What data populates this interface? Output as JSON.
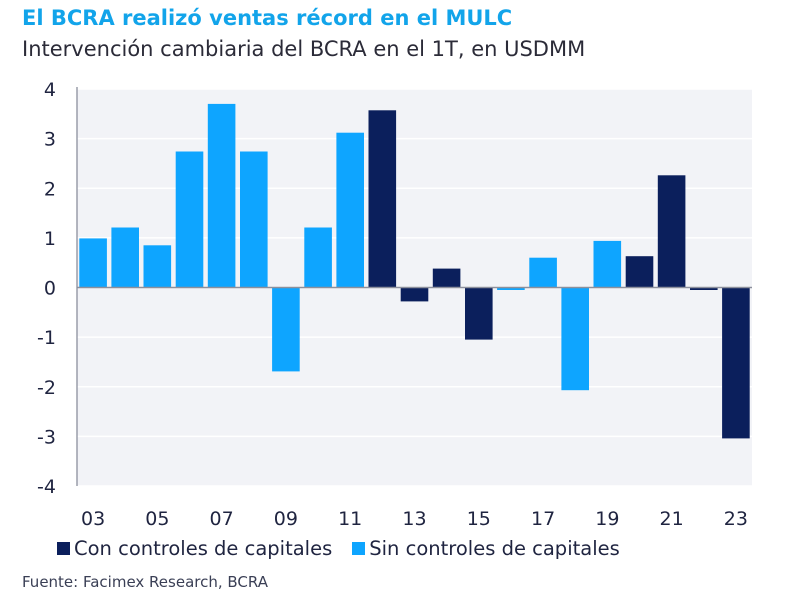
{
  "header": {
    "title": "El BCRA realizó ventas récord en el MULC",
    "subtitle": "Intervención cambiaria del BCRA en el 1T, en USDMM"
  },
  "colors": {
    "con_controles": "#0b1f5c",
    "sin_controles": "#0ea5ff",
    "plot_background": "#f2f3f7",
    "title": "#12a4ea"
  },
  "legend": {
    "items": [
      {
        "label": "Con controles de capitales",
        "color": "#0b1f5c"
      },
      {
        "label": "Sin controles de capitales",
        "color": "#0ea5ff"
      }
    ]
  },
  "source": "Fuente: Facimex Research, BCRA",
  "chart_data": {
    "type": "bar",
    "title": "El BCRA realizó ventas récord en el MULC",
    "subtitle": "Intervención cambiaria del BCRA en el 1T, en USDMM",
    "xlabel": "",
    "ylabel": "",
    "ylim": [
      -4,
      4
    ],
    "yticks": [
      4,
      3,
      2,
      1,
      0,
      -1,
      -2,
      -3,
      -4
    ],
    "xtick_labels": [
      "03",
      "05",
      "07",
      "09",
      "11",
      "13",
      "15",
      "17",
      "19",
      "21",
      "23"
    ],
    "grid": true,
    "legend_position": "bottom",
    "categories": [
      "03",
      "04",
      "05",
      "06",
      "07",
      "08",
      "09",
      "10",
      "11",
      "12",
      "13",
      "14",
      "15",
      "16",
      "17",
      "18",
      "19",
      "20",
      "21",
      "22",
      "23"
    ],
    "values": [
      0.99,
      1.21,
      0.85,
      2.74,
      3.7,
      2.74,
      -1.69,
      1.21,
      3.12,
      3.57,
      -0.28,
      0.38,
      -1.05,
      -0.05,
      0.6,
      -2.07,
      0.94,
      0.63,
      2.26,
      -0.05,
      -3.04
    ],
    "groups": [
      "sin",
      "sin",
      "sin",
      "sin",
      "sin",
      "sin",
      "sin",
      "sin",
      "sin",
      "con",
      "con",
      "con",
      "con",
      "sin",
      "sin",
      "sin",
      "sin",
      "con",
      "con",
      "con",
      "con"
    ],
    "series": [
      {
        "name": "Con controles de capitales",
        "key": "con"
      },
      {
        "name": "Sin controles de capitales",
        "key": "sin"
      }
    ]
  }
}
